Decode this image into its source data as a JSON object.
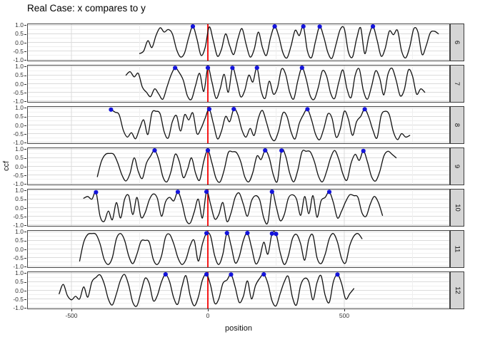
{
  "chart_data": {
    "type": "line",
    "title": "Real Case: x compares to y",
    "xlabel": "position",
    "ylabel": "ccf",
    "xlim": [
      -662,
      887
    ],
    "ylim": [
      -1.1,
      1.1
    ],
    "grid": "on",
    "legend": "none",
    "reference_line_x": 0,
    "x_ticks": [
      {
        "label": "-500",
        "value": -500
      },
      {
        "label": "0",
        "value": 0
      },
      {
        "label": "500",
        "value": 500
      }
    ],
    "x_minor_gridlines": [
      -250,
      250,
      750
    ],
    "y_ticks": [
      {
        "label": "1.0",
        "value": 1.0
      },
      {
        "label": "0.5",
        "value": 0.5
      },
      {
        "label": "0.0",
        "value": 0.0
      },
      {
        "label": "-0.5",
        "value": -0.5
      },
      {
        "label": "-1.0",
        "value": -1.0
      }
    ],
    "y_minor_gridlines": [
      0.75,
      0.25,
      -0.25,
      -0.75
    ],
    "colors": {
      "line": "#111111",
      "reference": "#F40000",
      "marker": "#1414DB",
      "strip_fill": "#D5D5D5",
      "strip_border": "#3c3c3c",
      "panel_border": "#4a4a4a",
      "grid_major": "#DBDBDB",
      "grid_minor": "#EFEFEF",
      "tick": "#333333"
    },
    "facets": [
      {
        "label": "6",
        "x0": -250,
        "dx": 15,
        "marker_x": [
          -50,
          250,
          350,
          415,
          605
        ],
        "y": [
          -0.65,
          -0.5,
          0.1,
          -0.3,
          0.4,
          0.85,
          0.6,
          0.75,
          0.5,
          -0.4,
          -0.85,
          -0.6,
          0.3,
          0.93,
          0.2,
          -0.75,
          -0.3,
          0.9,
          0.1,
          -0.8,
          -0.4,
          0.5,
          -0.2,
          -0.7,
          0.2,
          0.8,
          -0.1,
          -0.85,
          -0.4,
          0.6,
          -0.3,
          -0.75,
          0.3,
          0.93,
          0.35,
          -0.6,
          -0.9,
          -0.2,
          0.7,
          0.4,
          0.93,
          -0.5,
          -0.88,
          0.1,
          0.92,
          0.3,
          -0.6,
          -0.92,
          -0.1,
          0.75,
          0.8,
          -0.55,
          -0.85,
          0.2,
          0.85,
          -0.65,
          0.35,
          0.93,
          0.15,
          -0.8,
          -0.35,
          0.65,
          0.45,
          0.7,
          -0.5,
          -0.9,
          -0.25,
          0.8,
          0.6,
          -0.7,
          -0.2,
          0.55,
          0.65,
          0.5
        ]
      },
      {
        "label": "7",
        "x0": -300,
        "dx": 15,
        "marker_x": [
          -115,
          0,
          85,
          180,
          350
        ],
        "y": [
          0.5,
          0.7,
          0.4,
          0.6,
          -0.2,
          -0.5,
          -0.75,
          -0.3,
          -0.6,
          -0.9,
          -0.2,
          0.5,
          0.92,
          0.65,
          0.2,
          -0.7,
          -0.9,
          -0.1,
          0.6,
          -0.45,
          0.93,
          0.1,
          -0.85,
          -0.3,
          0.55,
          -0.5,
          0.92,
          0.2,
          -0.75,
          -0.4,
          0.5,
          0.1,
          0.93,
          -0.4,
          -0.85,
          0.15,
          -0.6,
          -0.25,
          0.85,
          0.55,
          -0.5,
          -0.88,
          0.2,
          0.93,
          0.3,
          -0.7,
          -0.9,
          -0.2,
          0.75,
          0.45,
          -0.55,
          -0.85,
          0.1,
          0.8,
          -0.3,
          -0.8,
          0.5,
          0.85,
          -0.4,
          -0.9,
          -0.15,
          0.75,
          0.3,
          -0.65,
          0.55,
          0.9,
          0.2,
          -0.7,
          -0.35,
          0.8,
          0.45,
          -0.6,
          -0.3,
          -0.5
        ]
      },
      {
        "label": "8",
        "x0": -355,
        "dx": 15,
        "marker_x": [
          -350,
          0,
          100,
          370,
          580
        ],
        "y": [
          0.9,
          0.75,
          0.6,
          -0.3,
          -0.7,
          -0.45,
          -0.8,
          -0.2,
          0.3,
          -0.55,
          0.7,
          0.8,
          0.65,
          -0.4,
          -0.75,
          0.2,
          0.55,
          -0.35,
          0.6,
          0.3,
          0.7,
          -0.5,
          -0.2,
          0.4,
          0.93,
          0.1,
          -0.8,
          -0.35,
          0.5,
          0.2,
          0.93,
          0.6,
          -0.3,
          -0.7,
          -0.2,
          -0.6,
          0.4,
          0.85,
          0.15,
          -0.65,
          -0.9,
          -0.3,
          0.7,
          0.5,
          -0.4,
          -0.8,
          0.1,
          0.6,
          0.92,
          0.3,
          -0.55,
          -0.85,
          -0.2,
          0.65,
          0.4,
          -0.7,
          -0.25,
          0.8,
          0.35,
          -0.6,
          0.2,
          0.5,
          0.92,
          0.45,
          -0.3,
          -0.75,
          0.55,
          0.8,
          0.6,
          -0.4,
          -0.85,
          -0.5,
          -0.7,
          -0.6
        ]
      },
      {
        "label": "9",
        "x0": -405,
        "dx": 15,
        "marker_x": [
          -195,
          0,
          205,
          265,
          565
        ],
        "y": [
          -0.6,
          0.3,
          0.7,
          0.75,
          0.7,
          0.2,
          -0.5,
          -0.85,
          -0.4,
          0.5,
          -0.3,
          -0.7,
          0.2,
          0.6,
          0.93,
          0.4,
          -0.6,
          -0.9,
          -0.3,
          0.7,
          0.3,
          -0.65,
          -0.2,
          0.5,
          -0.4,
          -0.8,
          0.3,
          0.93,
          0.2,
          -0.7,
          -0.9,
          -0.2,
          0.8,
          0.85,
          0.8,
          0.3,
          -0.6,
          -0.9,
          -0.35,
          0.6,
          0.4,
          0.93,
          0.5,
          -0.5,
          -0.85,
          0.92,
          0.6,
          -0.4,
          -0.9,
          -0.2,
          0.85,
          0.88,
          0.85,
          0.3,
          -0.55,
          -0.9,
          -0.3,
          0.5,
          0.92,
          0.4,
          -0.45,
          -0.8,
          0.2,
          0.7,
          0.35,
          0.9,
          0.25,
          -0.6,
          -0.85,
          -0.3,
          0.6,
          0.88,
          0.7,
          0.5
        ]
      },
      {
        "label": "10",
        "x0": -455,
        "dx": 15,
        "marker_x": [
          -415,
          -115,
          0,
          240,
          450
        ],
        "y": [
          0.55,
          0.65,
          0.5,
          0.9,
          -0.5,
          -0.8,
          -0.2,
          -0.7,
          0.3,
          -0.6,
          0.5,
          0.7,
          -0.4,
          0.6,
          -0.55,
          -0.3,
          0.45,
          0.8,
          0.55,
          -0.5,
          0.35,
          0.6,
          0.4,
          0.92,
          0.3,
          -0.7,
          -0.9,
          -0.25,
          0.5,
          -0.6,
          0.93,
          0.2,
          -0.65,
          -0.4,
          0.3,
          -0.8,
          -0.3,
          0.6,
          0.85,
          0.2,
          -0.5,
          0.4,
          0.7,
          0.45,
          -0.6,
          -0.85,
          0.93,
          0.1,
          -0.75,
          -0.4,
          0.55,
          0.75,
          0.5,
          -0.45,
          0.65,
          -0.35,
          0.7,
          -0.55,
          0.4,
          0.6,
          0.92,
          0.3,
          -0.6,
          -0.2,
          0.35,
          0.75,
          0.7,
          0.6,
          -0.3,
          -0.5,
          0.2,
          0.65,
          0.3,
          -0.45
        ]
      },
      {
        "label": "11",
        "x0": -470,
        "dx": 15,
        "marker_x": [
          0,
          75,
          140,
          235,
          255
        ],
        "y": [
          -0.7,
          0.4,
          0.85,
          0.9,
          0.85,
          0.3,
          -0.6,
          -0.9,
          -0.5,
          0.6,
          0.9,
          0.5,
          -0.4,
          -0.85,
          -0.3,
          0.45,
          0.5,
          0.4,
          -0.6,
          -0.9,
          -0.4,
          0.7,
          0.85,
          0.3,
          -0.5,
          -0.9,
          -0.6,
          0.2,
          0.5,
          -0.7,
          0.3,
          0.92,
          0.75,
          -0.4,
          -0.9,
          -0.3,
          0.93,
          0.2,
          -0.8,
          -0.45,
          0.5,
          0.93,
          0.1,
          -0.85,
          -0.5,
          0.4,
          -0.3,
          0.9,
          0.88,
          -0.2,
          -0.9,
          -0.4,
          0.6,
          0.85,
          0.3,
          -0.65,
          0.55,
          0.8,
          -0.5,
          -0.85,
          -0.3,
          0.6,
          0.9,
          0.4,
          -0.55,
          -0.8,
          0.2,
          0.75,
          0.9,
          0.6
        ]
      },
      {
        "label": "12",
        "x0": -545,
        "dx": 15,
        "marker_x": [
          -155,
          0,
          90,
          200,
          475
        ],
        "y": [
          -0.2,
          0.35,
          -0.3,
          -0.55,
          -0.35,
          -0.5,
          0.2,
          -0.4,
          0.5,
          0.75,
          0.9,
          0.4,
          -0.5,
          -0.85,
          -0.2,
          0.6,
          0.92,
          0.3,
          -0.7,
          -0.9,
          -0.1,
          0.7,
          0.4,
          -0.6,
          -0.3,
          0.5,
          0.93,
          0.5,
          -0.45,
          -0.8,
          0.2,
          0.85,
          -0.3,
          -0.9,
          -0.4,
          0.6,
          0.93,
          0.3,
          -0.75,
          -0.5,
          0.4,
          0.6,
          0.92,
          0.2,
          -0.7,
          -0.35,
          0.55,
          -0.5,
          0.3,
          0.7,
          0.93,
          0.4,
          -0.6,
          -0.9,
          -0.2,
          0.5,
          0.8,
          -0.4,
          -0.85,
          0.3,
          0.7,
          0.5,
          -0.55,
          0.45,
          0.85,
          -0.3,
          -0.7,
          0.5,
          0.92,
          0.4,
          -0.5,
          -0.2,
          0.1
        ]
      }
    ]
  }
}
